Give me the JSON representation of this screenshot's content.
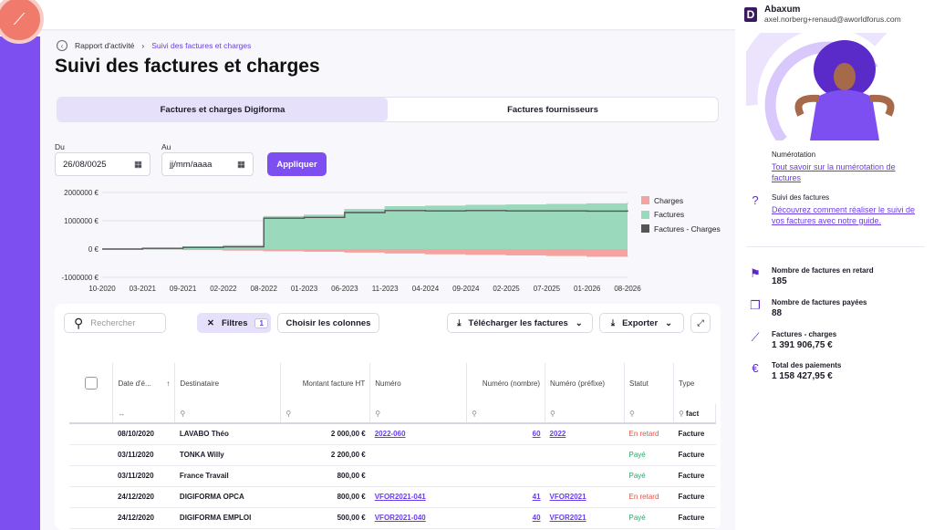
{
  "account": {
    "name": "Abaxum",
    "email": "axel.norberg+renaud@aworldforus.com"
  },
  "breadcrumb": {
    "parent": "Rapport d'activité",
    "current": "Suivi des factures et charges"
  },
  "page_title": "Suivi des factures et charges",
  "tabs": [
    {
      "label": "Factures et charges Digiforma"
    },
    {
      "label": "Factures fournisseurs"
    }
  ],
  "filters": {
    "from_label": "Du",
    "from_value": "26/08/0025",
    "to_label": "Au",
    "to_value": "jj/mm/aaaa",
    "apply_label": "Appliquer"
  },
  "chart_data": {
    "type": "area",
    "x": [
      "10-2020",
      "03-2021",
      "09-2021",
      "02-2022",
      "08-2022",
      "01-2023",
      "06-2023",
      "11-2023",
      "04-2024",
      "09-2024",
      "02-2025",
      "07-2025",
      "01-2026",
      "08-2026"
    ],
    "y_ticks": [
      "2000000 €",
      "1000000 €",
      "0 €",
      "-1000000 €"
    ],
    "ylim": [
      -1000000,
      2000000
    ],
    "series": [
      {
        "name": "Charges",
        "color": "#f4a3a0",
        "values": [
          0,
          -5000,
          -20000,
          -40000,
          -60000,
          -80000,
          -110000,
          -140000,
          -170000,
          -190000,
          -210000,
          -230000,
          -260000,
          -280000
        ]
      },
      {
        "name": "Factures",
        "color": "#9ad9bb",
        "values": [
          0,
          30000,
          80000,
          120000,
          1150000,
          1200000,
          1400000,
          1500000,
          1520000,
          1550000,
          1560000,
          1580000,
          1600000,
          1650000
        ]
      },
      {
        "name": "Factures - Charges",
        "color": "#555555",
        "values": [
          0,
          25000,
          60000,
          80000,
          1090000,
          1120000,
          1290000,
          1360000,
          1350000,
          1360000,
          1350000,
          1350000,
          1340000,
          1370000
        ]
      }
    ]
  },
  "toolbar": {
    "search_placeholder": "Rechercher",
    "filters_label": "Filtres",
    "filters_count": "1",
    "columns_label": "Choisir les colonnes",
    "download_label": "Télécharger les factures",
    "export_label": "Exporter"
  },
  "table": {
    "headers": [
      "Date d'é...",
      "Destinataire",
      "Montant facture HT",
      "Numéro",
      "Numéro (nombre)",
      "Numéro (préfixe)",
      "Statut",
      "Type"
    ],
    "type_filter": "fact",
    "rows": [
      {
        "date": "08/10/2020",
        "dest": "LAVABO Théo",
        "amount": "2 000,00 €",
        "num": "2022-060",
        "nnum": "60",
        "prefix": "2022",
        "status": "En retard",
        "type": "Facture"
      },
      {
        "date": "03/11/2020",
        "dest": "TONKA Willy",
        "amount": "2 200,00 €",
        "num": "",
        "nnum": "",
        "prefix": "",
        "status": "Payé",
        "type": "Facture"
      },
      {
        "date": "03/11/2020",
        "dest": "France Travail",
        "amount": "800,00 €",
        "num": "",
        "nnum": "",
        "prefix": "",
        "status": "Payé",
        "type": "Facture"
      },
      {
        "date": "24/12/2020",
        "dest": "DIGIFORMA OPCA",
        "amount": "800,00 €",
        "num": "VFOR2021-041",
        "nnum": "41",
        "prefix": "VFOR2021",
        "status": "En retard",
        "type": "Facture"
      },
      {
        "date": "24/12/2020",
        "dest": "DIGIFORMA EMPLOI",
        "amount": "500,00 €",
        "num": "VFOR2021-040",
        "nnum": "40",
        "prefix": "VFOR2021",
        "status": "Payé",
        "type": "Facture"
      }
    ]
  },
  "sidebar": {
    "numerotation_title": "Numérotation",
    "numerotation_link": "Tout savoir sur la numérotation de factures",
    "suivi_title": "Suivi des factures",
    "suivi_link": "Découvrez comment réaliser le suivi de vos factures avec notre guide.",
    "stats": [
      {
        "label": "Nombre de factures en retard",
        "value": "185"
      },
      {
        "label": "Nombre de factures payées",
        "value": "88"
      },
      {
        "label": "Factures - charges",
        "value": "1 391 906,75 €"
      },
      {
        "label": "Total des paiements",
        "value": "1 158 427,95 €"
      }
    ]
  }
}
